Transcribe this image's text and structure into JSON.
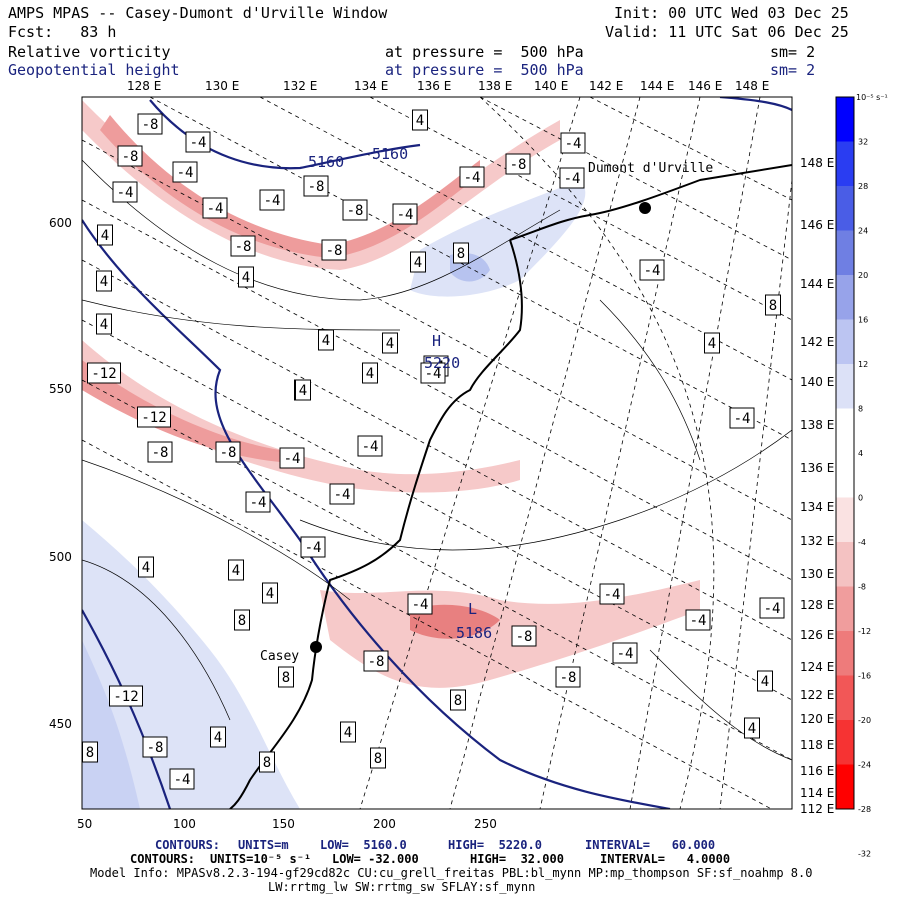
{
  "header": {
    "model_title": "AMPS MPAS -- Casey-Dumont d'Urville Window",
    "init_line": "Init: 00 UTC Wed 03 Dec 25",
    "fcst_line": "Fcst:   83 h",
    "valid_line": "Valid: 11 UTC Sat 06 Dec 25",
    "field1": {
      "name": "Relative vorticity",
      "level": "at pressure =  500 hPa",
      "smooth": "sm= 2"
    },
    "field2": {
      "name": "Geopotential height",
      "level": "at pressure =  500 hPa",
      "smooth": "sm= 2"
    }
  },
  "axes": {
    "top_lon_labels": [
      "128 E",
      "130 E",
      "132 E",
      "134 E",
      "136 E",
      "138 E",
      "140 E",
      "142 E",
      "144 E",
      "146 E",
      "148 E"
    ],
    "right_lon_labels": [
      "148 E",
      "146 E",
      "144 E",
      "142 E",
      "140 E",
      "138 E",
      "136 E",
      "134 E",
      "132 E",
      "130 E",
      "128 E",
      "126 E",
      "124 E",
      "122 E",
      "120 E",
      "118 E",
      "116 E",
      "114 E",
      "112 E"
    ],
    "bottom_labels": [
      "50",
      "100",
      "150",
      "200",
      "250"
    ],
    "left_labels": [
      "600",
      "550",
      "500",
      "450"
    ]
  },
  "colorbar": {
    "unit": "10⁻⁵ s⁻¹",
    "labels": [
      "32",
      "28",
      "24",
      "20",
      "16",
      "12",
      "8",
      "4",
      "0",
      "-4",
      "-8",
      "-12",
      "-16",
      "-20",
      "-24",
      "-28",
      "-32"
    ]
  },
  "annotations": {
    "stations": [
      "Dumont d'Urville",
      "Casey"
    ],
    "high_marker": "H",
    "low_marker": "L",
    "height_labels": [
      "5160",
      "5160",
      "5186",
      "5220"
    ],
    "vort_labels": [
      "-8",
      "-4",
      "-8",
      "-4",
      "-4",
      "-4",
      "-8",
      "-4",
      "-8",
      "-4",
      "-8",
      "-8",
      "-8",
      "-4",
      "4",
      "-4",
      "8",
      "4",
      "-4",
      "4",
      "4",
      "4",
      "4",
      "-4",
      "4",
      "4",
      "4",
      "-4",
      "4",
      "4",
      "-12",
      "-12",
      "-8",
      "-8",
      "-4",
      "-4",
      "-4",
      "-4",
      "4",
      "4",
      "4",
      "-4",
      "-4",
      "-4",
      "-4",
      "-4",
      "-8",
      "-8",
      "-8",
      "8",
      "8",
      "8",
      "4",
      "4",
      "8",
      "8",
      "4",
      "-12",
      "-8",
      "-4",
      "8",
      "4",
      "-4",
      "4",
      "4",
      "4",
      "-4",
      "8",
      "-4"
    ]
  },
  "footer": {
    "line1": {
      "label": "CONTOURS:",
      "units": "UNITS=m",
      "low": "LOW=  5160.0",
      "high": "HIGH=  5220.0",
      "interval": "INTERVAL=   60.000"
    },
    "line2": {
      "label": "CONTOURS:",
      "units": "UNITS=10⁻⁵ s⁻¹",
      "low": "LOW= -32.000",
      "high": "HIGH=  32.000",
      "interval": "INTERVAL=   4.0000"
    },
    "line3": "Model Info: MPASv8.2.3-194-gf29cd82c CU:cu_grell_freitas PBL:bl_mynn MP:mp_thompson SF:sf_noahmp 8.0",
    "line4": "LW:rrtmg_lw SW:rrtmg_sw SFLAY:sf_mynn"
  },
  "colors": {
    "blue_contour": "#1a237e",
    "positive_max": "#0000ff",
    "negative_max": "#ff0000",
    "coast": "#000000"
  }
}
